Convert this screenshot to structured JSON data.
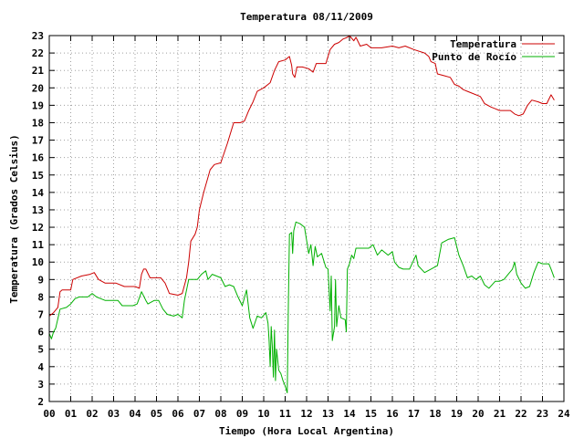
{
  "chart_data": {
    "type": "line",
    "title": "Temperatura 08/11/2009",
    "xlabel": "Tiempo (Hora Local Argentina)",
    "ylabel": "Temperatura (Grados Celsius)",
    "xlim": [
      0,
      24
    ],
    "ylim": [
      2,
      23
    ],
    "grid": true,
    "legend_position": "top-right",
    "x_ticks": [
      {
        "value": 0,
        "label": "00"
      },
      {
        "value": 1,
        "label": "01"
      },
      {
        "value": 2,
        "label": "02"
      },
      {
        "value": 3,
        "label": "03"
      },
      {
        "value": 4,
        "label": "04"
      },
      {
        "value": 5,
        "label": "05"
      },
      {
        "value": 6,
        "label": "06"
      },
      {
        "value": 7,
        "label": "07"
      },
      {
        "value": 8,
        "label": "08"
      },
      {
        "value": 9,
        "label": "09"
      },
      {
        "value": 10,
        "label": "10"
      },
      {
        "value": 11,
        "label": "11"
      },
      {
        "value": 12,
        "label": "12"
      },
      {
        "value": 13,
        "label": "13"
      },
      {
        "value": 14,
        "label": "14"
      },
      {
        "value": 15,
        "label": "15"
      },
      {
        "value": 16,
        "label": "16"
      },
      {
        "value": 17,
        "label": "17"
      },
      {
        "value": 18,
        "label": "18"
      },
      {
        "value": 19,
        "label": "19"
      },
      {
        "value": 20,
        "label": "20"
      },
      {
        "value": 21,
        "label": "21"
      },
      {
        "value": 22,
        "label": "22"
      },
      {
        "value": 23,
        "label": "23"
      },
      {
        "value": 24,
        "label": "24"
      }
    ],
    "y_ticks": [
      2,
      3,
      4,
      5,
      6,
      7,
      8,
      9,
      10,
      11,
      12,
      13,
      14,
      15,
      16,
      17,
      18,
      19,
      20,
      21,
      22,
      23
    ],
    "series": [
      {
        "name": "Temperatura",
        "color": "#cc0000",
        "points": [
          [
            0.0,
            6.9
          ],
          [
            0.2,
            7.1
          ],
          [
            0.4,
            7.4
          ],
          [
            0.5,
            8.3
          ],
          [
            0.6,
            8.4
          ],
          [
            1.0,
            8.4
          ],
          [
            1.1,
            9.0
          ],
          [
            1.5,
            9.2
          ],
          [
            1.9,
            9.3
          ],
          [
            2.1,
            9.4
          ],
          [
            2.3,
            9.0
          ],
          [
            2.6,
            8.8
          ],
          [
            3.1,
            8.8
          ],
          [
            3.5,
            8.6
          ],
          [
            4.0,
            8.6
          ],
          [
            4.2,
            8.5
          ],
          [
            4.3,
            9.3
          ],
          [
            4.4,
            9.6
          ],
          [
            4.5,
            9.6
          ],
          [
            4.7,
            9.1
          ],
          [
            5.0,
            9.1
          ],
          [
            5.2,
            9.1
          ],
          [
            5.4,
            8.8
          ],
          [
            5.5,
            8.5
          ],
          [
            5.6,
            8.2
          ],
          [
            6.0,
            8.1
          ],
          [
            6.2,
            8.2
          ],
          [
            6.4,
            9.1
          ],
          [
            6.5,
            10.0
          ],
          [
            6.6,
            11.2
          ],
          [
            6.8,
            11.6
          ],
          [
            6.9,
            12.0
          ],
          [
            7.0,
            13.0
          ],
          [
            7.2,
            14.0
          ],
          [
            7.5,
            15.3
          ],
          [
            7.7,
            15.6
          ],
          [
            8.0,
            15.7
          ],
          [
            8.3,
            16.8
          ],
          [
            8.6,
            18.0
          ],
          [
            8.9,
            18.0
          ],
          [
            9.1,
            18.1
          ],
          [
            9.3,
            18.7
          ],
          [
            9.5,
            19.2
          ],
          [
            9.7,
            19.8
          ],
          [
            10.0,
            20.0
          ],
          [
            10.3,
            20.3
          ],
          [
            10.5,
            21.0
          ],
          [
            10.7,
            21.5
          ],
          [
            11.0,
            21.6
          ],
          [
            11.2,
            21.8
          ],
          [
            11.3,
            21.3
          ],
          [
            11.35,
            20.8
          ],
          [
            11.45,
            20.6
          ],
          [
            11.55,
            21.2
          ],
          [
            11.8,
            21.2
          ],
          [
            12.1,
            21.1
          ],
          [
            12.3,
            20.9
          ],
          [
            12.45,
            21.4
          ],
          [
            12.6,
            21.4
          ],
          [
            12.9,
            21.4
          ],
          [
            13.1,
            22.2
          ],
          [
            13.3,
            22.5
          ],
          [
            13.5,
            22.6
          ],
          [
            13.7,
            22.8
          ],
          [
            13.9,
            22.9
          ],
          [
            14.0,
            23.0
          ],
          [
            14.2,
            22.7
          ],
          [
            14.3,
            22.9
          ],
          [
            14.5,
            22.4
          ],
          [
            14.8,
            22.5
          ],
          [
            15.0,
            22.3
          ],
          [
            15.5,
            22.3
          ],
          [
            16.0,
            22.4
          ],
          [
            16.3,
            22.3
          ],
          [
            16.6,
            22.4
          ],
          [
            17.0,
            22.2
          ],
          [
            17.5,
            22.0
          ],
          [
            17.7,
            21.8
          ],
          [
            17.8,
            21.5
          ],
          [
            18.0,
            21.4
          ],
          [
            18.1,
            20.8
          ],
          [
            18.4,
            20.7
          ],
          [
            18.7,
            20.6
          ],
          [
            18.9,
            20.2
          ],
          [
            19.1,
            20.1
          ],
          [
            19.3,
            19.9
          ],
          [
            19.5,
            19.8
          ],
          [
            19.7,
            19.7
          ],
          [
            20.1,
            19.5
          ],
          [
            20.3,
            19.1
          ],
          [
            20.6,
            18.9
          ],
          [
            20.8,
            18.8
          ],
          [
            21.0,
            18.7
          ],
          [
            21.5,
            18.7
          ],
          [
            21.7,
            18.5
          ],
          [
            21.9,
            18.4
          ],
          [
            22.1,
            18.5
          ],
          [
            22.3,
            19.0
          ],
          [
            22.5,
            19.3
          ],
          [
            22.8,
            19.2
          ],
          [
            23.0,
            19.1
          ],
          [
            23.2,
            19.1
          ],
          [
            23.4,
            19.6
          ],
          [
            23.55,
            19.3
          ]
        ]
      },
      {
        "name": "Punto de Rocío",
        "color": "#00b000",
        "points": [
          [
            0.0,
            5.9
          ],
          [
            0.1,
            5.6
          ],
          [
            0.2,
            6.0
          ],
          [
            0.3,
            6.2
          ],
          [
            0.5,
            7.3
          ],
          [
            0.8,
            7.4
          ],
          [
            1.0,
            7.6
          ],
          [
            1.2,
            7.9
          ],
          [
            1.4,
            8.0
          ],
          [
            1.8,
            8.0
          ],
          [
            2.0,
            8.2
          ],
          [
            2.2,
            8.0
          ],
          [
            2.4,
            7.9
          ],
          [
            2.6,
            7.8
          ],
          [
            2.9,
            7.8
          ],
          [
            3.2,
            7.8
          ],
          [
            3.4,
            7.5
          ],
          [
            3.6,
            7.5
          ],
          [
            3.9,
            7.5
          ],
          [
            4.1,
            7.6
          ],
          [
            4.3,
            8.3
          ],
          [
            4.5,
            7.8
          ],
          [
            4.6,
            7.6
          ],
          [
            4.9,
            7.8
          ],
          [
            5.1,
            7.8
          ],
          [
            5.3,
            7.3
          ],
          [
            5.5,
            7.0
          ],
          [
            5.8,
            6.9
          ],
          [
            6.0,
            7.0
          ],
          [
            6.2,
            6.8
          ],
          [
            6.3,
            7.8
          ],
          [
            6.5,
            9.0
          ],
          [
            6.9,
            9.0
          ],
          [
            7.1,
            9.3
          ],
          [
            7.3,
            9.5
          ],
          [
            7.4,
            9.0
          ],
          [
            7.6,
            9.3
          ],
          [
            7.8,
            9.2
          ],
          [
            8.0,
            9.1
          ],
          [
            8.2,
            8.6
          ],
          [
            8.4,
            8.7
          ],
          [
            8.6,
            8.6
          ],
          [
            8.8,
            8.0
          ],
          [
            9.0,
            7.5
          ],
          [
            9.2,
            8.4
          ],
          [
            9.35,
            6.8
          ],
          [
            9.5,
            6.2
          ],
          [
            9.7,
            6.9
          ],
          [
            9.9,
            6.8
          ],
          [
            10.1,
            7.1
          ],
          [
            10.2,
            6.5
          ],
          [
            10.25,
            5.5
          ],
          [
            10.3,
            4.0
          ],
          [
            10.35,
            6.3
          ],
          [
            10.4,
            5.2
          ],
          [
            10.45,
            3.4
          ],
          [
            10.5,
            6.1
          ],
          [
            10.55,
            3.2
          ],
          [
            10.6,
            5.0
          ],
          [
            10.7,
            3.8
          ],
          [
            10.8,
            3.6
          ],
          [
            10.9,
            3.2
          ],
          [
            11.0,
            2.9
          ],
          [
            11.1,
            2.5
          ],
          [
            11.15,
            7.5
          ],
          [
            11.2,
            11.6
          ],
          [
            11.3,
            11.7
          ],
          [
            11.35,
            10.5
          ],
          [
            11.4,
            11.8
          ],
          [
            11.5,
            12.3
          ],
          [
            11.7,
            12.2
          ],
          [
            11.9,
            12.0
          ],
          [
            12.1,
            10.5
          ],
          [
            12.2,
            11.0
          ],
          [
            12.3,
            9.8
          ],
          [
            12.4,
            10.9
          ],
          [
            12.5,
            10.3
          ],
          [
            12.7,
            10.5
          ],
          [
            12.9,
            9.7
          ],
          [
            13.0,
            9.6
          ],
          [
            13.1,
            7.2
          ],
          [
            13.15,
            9.2
          ],
          [
            13.2,
            5.5
          ],
          [
            13.3,
            6.3
          ],
          [
            13.35,
            9.0
          ],
          [
            13.4,
            6.3
          ],
          [
            13.5,
            7.5
          ],
          [
            13.6,
            6.8
          ],
          [
            13.8,
            6.7
          ],
          [
            13.85,
            6.0
          ],
          [
            13.9,
            9.6
          ],
          [
            14.0,
            9.9
          ],
          [
            14.1,
            10.4
          ],
          [
            14.2,
            10.2
          ],
          [
            14.3,
            10.8
          ],
          [
            14.6,
            10.8
          ],
          [
            14.9,
            10.8
          ],
          [
            15.1,
            11.0
          ],
          [
            15.3,
            10.4
          ],
          [
            15.5,
            10.7
          ],
          [
            15.8,
            10.4
          ],
          [
            16.0,
            10.6
          ],
          [
            16.1,
            10.0
          ],
          [
            16.3,
            9.7
          ],
          [
            16.5,
            9.6
          ],
          [
            16.8,
            9.6
          ],
          [
            17.1,
            10.4
          ],
          [
            17.2,
            9.8
          ],
          [
            17.5,
            9.4
          ],
          [
            17.8,
            9.6
          ],
          [
            18.1,
            9.8
          ],
          [
            18.3,
            11.1
          ],
          [
            18.6,
            11.3
          ],
          [
            18.9,
            11.4
          ],
          [
            19.1,
            10.4
          ],
          [
            19.3,
            9.8
          ],
          [
            19.5,
            9.1
          ],
          [
            19.7,
            9.2
          ],
          [
            19.9,
            9.0
          ],
          [
            20.1,
            9.2
          ],
          [
            20.3,
            8.7
          ],
          [
            20.5,
            8.5
          ],
          [
            20.8,
            8.9
          ],
          [
            21.0,
            8.9
          ],
          [
            21.2,
            9.0
          ],
          [
            21.4,
            9.3
          ],
          [
            21.6,
            9.6
          ],
          [
            21.7,
            10.0
          ],
          [
            21.8,
            9.3
          ],
          [
            22.0,
            8.8
          ],
          [
            22.2,
            8.5
          ],
          [
            22.4,
            8.6
          ],
          [
            22.6,
            9.4
          ],
          [
            22.8,
            10.0
          ],
          [
            23.0,
            9.9
          ],
          [
            23.3,
            9.9
          ],
          [
            23.4,
            9.6
          ],
          [
            23.55,
            9.1
          ]
        ]
      }
    ]
  }
}
